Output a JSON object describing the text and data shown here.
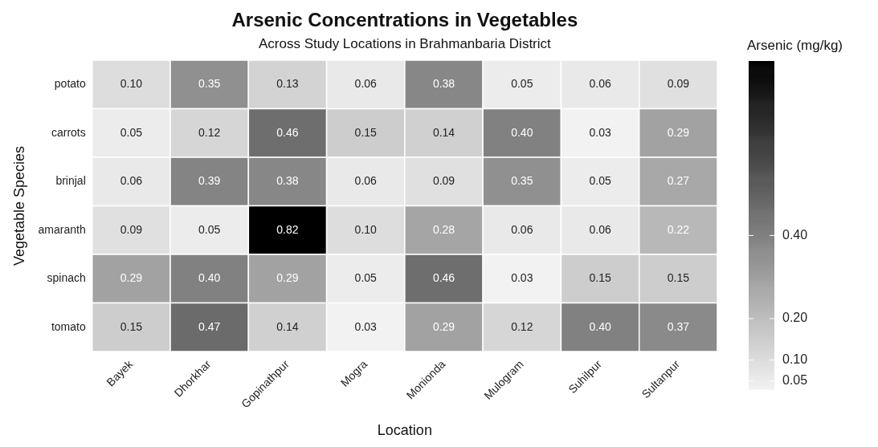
{
  "chart_data": {
    "type": "heatmap",
    "title": "Arsenic Concentrations in Vegetables",
    "subtitle": "Across Study Locations in Brahmanbaria District",
    "xlabel": "Location",
    "ylabel": "Vegetable Species",
    "clabel": "Arsenic (mg/kg)",
    "categories": [
      "Bayek",
      "Dhorkhar",
      "Gopinathpur",
      "Mogra",
      "Monionda",
      "Mulogram",
      "Suhilpur",
      "Sultanpur"
    ],
    "y_categories": [
      "potato",
      "carrots",
      "brinjal",
      "amaranth",
      "spinach",
      "tomato"
    ],
    "cells": [
      [
        0.1,
        0.35,
        0.13,
        0.06,
        0.38,
        0.05,
        0.06,
        0.09
      ],
      [
        0.05,
        0.12,
        0.46,
        0.15,
        0.14,
        0.4,
        0.03,
        0.29
      ],
      [
        0.06,
        0.39,
        0.38,
        0.06,
        0.09,
        0.35,
        0.05,
        0.27
      ],
      [
        0.09,
        0.05,
        0.82,
        0.1,
        0.28,
        0.06,
        0.06,
        0.22
      ],
      [
        0.29,
        0.4,
        0.29,
        0.05,
        0.46,
        0.03,
        0.15,
        0.15
      ],
      [
        0.15,
        0.47,
        0.14,
        0.03,
        0.29,
        0.12,
        0.4,
        0.37
      ]
    ],
    "clim": [
      0.03,
      0.82
    ],
    "cticks": [
      0.05,
      {
        "value": 0.1,
        "label": "0.10"
      },
      {
        "value": 0.2,
        "label": "0.20"
      },
      {
        "value": 0.4,
        "label": "0.40"
      }
    ],
    "cell_labels": [
      [
        "0.10",
        "0.35",
        "0.13",
        "0.06",
        "0.38",
        "0.05",
        "0.06",
        "0.09"
      ],
      [
        "0.05",
        "0.12",
        "0.46",
        "0.15",
        "0.14",
        "0.40",
        "0.03",
        "0.29"
      ],
      [
        "0.06",
        "0.39",
        "0.38",
        "0.06",
        "0.09",
        "0.35",
        "0.05",
        "0.27"
      ],
      [
        "0.09",
        "0.05",
        "0.82",
        "0.10",
        "0.28",
        "0.06",
        "0.06",
        "0.22"
      ],
      [
        "0.29",
        "0.40",
        "0.29",
        "0.05",
        "0.46",
        "0.03",
        "0.15",
        "0.15"
      ],
      [
        "0.15",
        "0.47",
        "0.14",
        "0.03",
        "0.29",
        "0.12",
        "0.40",
        "0.37"
      ]
    ]
  }
}
